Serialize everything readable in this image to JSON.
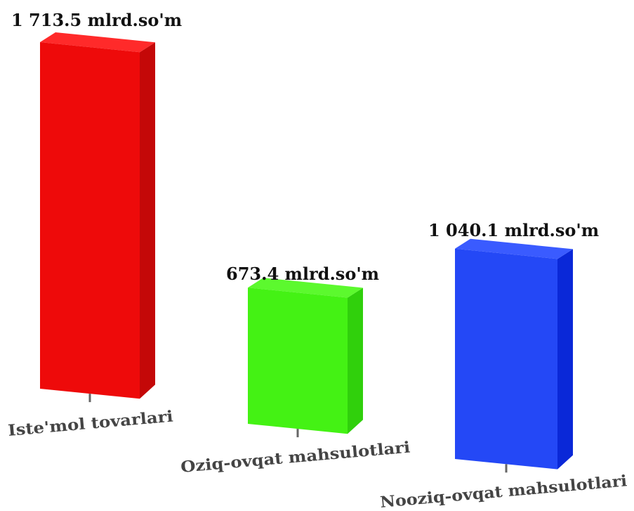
{
  "chart_data": {
    "type": "bar",
    "style": "3d-columns",
    "categories": [
      "Iste'mol tovarlari",
      "Oziq-ovqat mahsulotlari",
      "Nooziq-ovqat mahsulotlari"
    ],
    "values": [
      1713.5,
      673.4,
      1040.1
    ],
    "value_labels": [
      "1 713.5 mlrd.so'm",
      "673.4 mlrd.so'm",
      "1 040.1 mlrd.so'm"
    ],
    "colors": [
      "#ee0a0a",
      "#44f214",
      "#2448f6"
    ],
    "side_colors": [
      "#c40808",
      "#30d00c",
      "#0a28d8"
    ],
    "top_colors": [
      "#ff2a2a",
      "#5cf92e",
      "#3a5bff"
    ],
    "title": "",
    "xlabel": "",
    "ylabel": "",
    "grid": false,
    "legend": "none"
  }
}
